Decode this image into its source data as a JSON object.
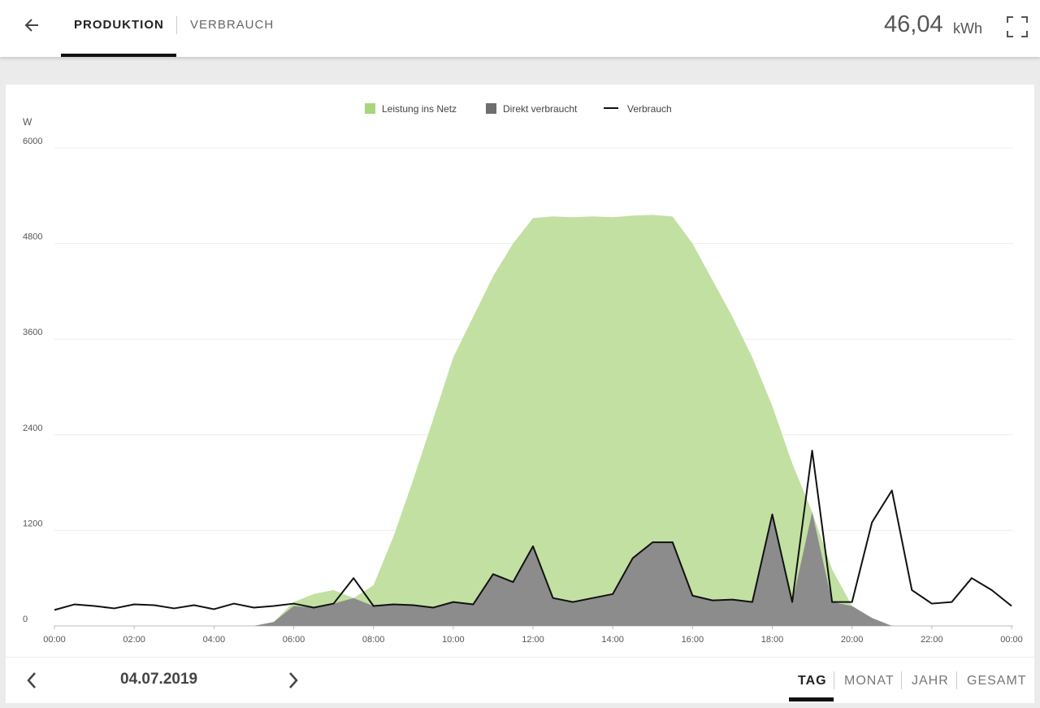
{
  "header": {
    "tabs": [
      "PRODUKTION",
      "VERBRAUCH"
    ],
    "active_tab": 0,
    "total": "46,04",
    "unit": "kWh"
  },
  "chart_data": {
    "type": "area",
    "stacked": true,
    "y_label": "W",
    "x": [
      0,
      0.5,
      1,
      1.5,
      2,
      2.5,
      3,
      3.5,
      4,
      4.5,
      5,
      5.5,
      6,
      6.5,
      7,
      7.5,
      8,
      8.5,
      9,
      9.5,
      10,
      10.5,
      11,
      11.5,
      12,
      12.5,
      13,
      13.5,
      14,
      14.5,
      15,
      15.5,
      16,
      16.5,
      17,
      17.5,
      18,
      18.5,
      19,
      19.5,
      20,
      20.5,
      21,
      21.5,
      22,
      22.5,
      23,
      23.5,
      24
    ],
    "xlim": [
      0,
      24
    ],
    "xticks": [
      {
        "value": 0,
        "label": "00:00"
      },
      {
        "value": 2,
        "label": "02:00"
      },
      {
        "value": 4,
        "label": "04:00"
      },
      {
        "value": 6,
        "label": "06:00"
      },
      {
        "value": 8,
        "label": "08:00"
      },
      {
        "value": 10,
        "label": "10:00"
      },
      {
        "value": 12,
        "label": "12:00"
      },
      {
        "value": 14,
        "label": "14:00"
      },
      {
        "value": 16,
        "label": "16:00"
      },
      {
        "value": 18,
        "label": "18:00"
      },
      {
        "value": 20,
        "label": "20:00"
      },
      {
        "value": 22,
        "label": "22:00"
      },
      {
        "value": 24,
        "label": "00:00"
      }
    ],
    "ylim": [
      0,
      6000
    ],
    "yticks": [
      0,
      1200,
      2400,
      3600,
      4800,
      6000
    ],
    "grid": true,
    "series": [
      {
        "name": "Leistung ins Netz",
        "type": "area",
        "color": "#c2e0a1",
        "legend_color": "#a8d57e",
        "values": [
          0,
          0,
          0,
          0,
          0,
          0,
          0,
          0,
          0,
          0,
          0,
          0,
          50,
          170,
          170,
          0,
          260,
          850,
          1580,
          2370,
          3070,
          3610,
          3740,
          4250,
          4120,
          4790,
          4830,
          4790,
          4730,
          4300,
          4110,
          4090,
          4420,
          4020,
          3550,
          3070,
          1360,
          1740,
          0,
          410,
          0,
          0,
          0,
          0,
          0,
          0,
          0,
          0,
          0
        ]
      },
      {
        "name": "Direkt verbraucht",
        "type": "area",
        "color": "#8c8c8c",
        "legend_color": "#6e6e6e",
        "values": [
          0,
          0,
          0,
          0,
          0,
          0,
          0,
          0,
          0,
          0,
          0,
          50,
          250,
          230,
          280,
          350,
          250,
          270,
          260,
          230,
          300,
          270,
          650,
          550,
          1000,
          350,
          300,
          350,
          400,
          850,
          1050,
          1050,
          380,
          320,
          330,
          300,
          1400,
          300,
          1430,
          300,
          250,
          100,
          0,
          0,
          0,
          0,
          0,
          0,
          0
        ]
      },
      {
        "name": "Verbrauch",
        "type": "line",
        "color": "#111111",
        "values": [
          200,
          270,
          250,
          220,
          270,
          260,
          220,
          260,
          210,
          280,
          230,
          250,
          280,
          230,
          280,
          600,
          250,
          270,
          260,
          230,
          300,
          270,
          650,
          550,
          1000,
          350,
          300,
          350,
          400,
          850,
          1050,
          1050,
          380,
          320,
          330,
          300,
          1400,
          300,
          2200,
          300,
          300,
          1300,
          1700,
          450,
          280,
          300,
          600,
          450,
          250
        ]
      }
    ]
  },
  "footer": {
    "date": "04.07.2019",
    "periods": [
      "TAG",
      "MONAT",
      "JAHR",
      "GESAMT"
    ],
    "active_period": 0
  }
}
